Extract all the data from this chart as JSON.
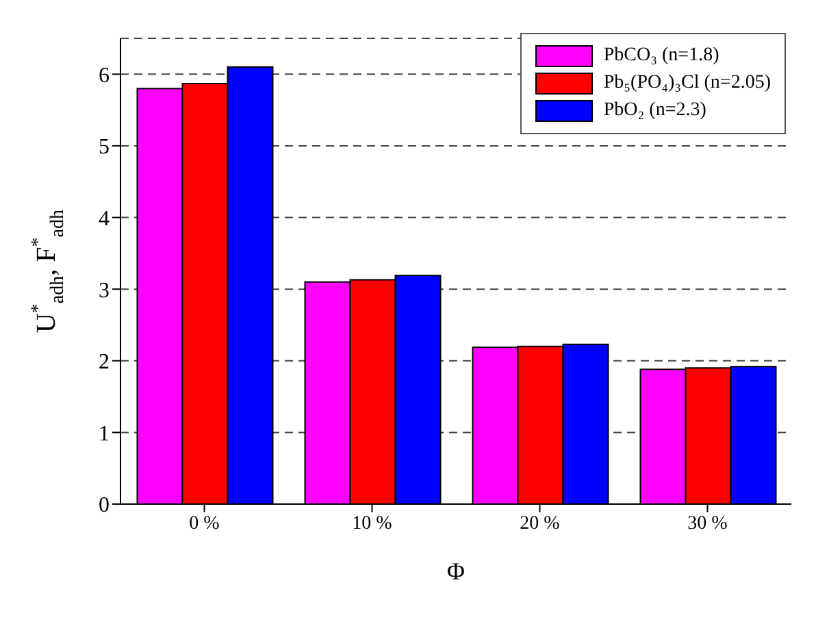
{
  "chart_data": {
    "type": "bar",
    "xlabel": "Φ",
    "ylabel": "U$^{*}$$_{adh}$, F$^{*}$$_{adh}$",
    "categories": [
      "0 %",
      "10 %",
      "20 %",
      "30 %"
    ],
    "series": [
      {
        "name": "PbCO₃ (n=1.8)",
        "color": "#ff00ff",
        "values": [
          5.8,
          3.1,
          2.19,
          1.88
        ]
      },
      {
        "name": "Pb₅(PO₄)₃Cl (n=2.05)",
        "color": "#ff0000",
        "values": [
          5.87,
          3.13,
          2.2,
          1.9
        ]
      },
      {
        "name": "PbO₂ (n=2.3)",
        "color": "#0000ff",
        "values": [
          6.1,
          3.19,
          2.23,
          1.92
        ]
      }
    ],
    "ylim": [
      0,
      6.5
    ],
    "yticks": [
      0,
      1,
      2,
      3,
      4,
      5,
      6
    ],
    "grid": "y",
    "legend": "top right"
  }
}
